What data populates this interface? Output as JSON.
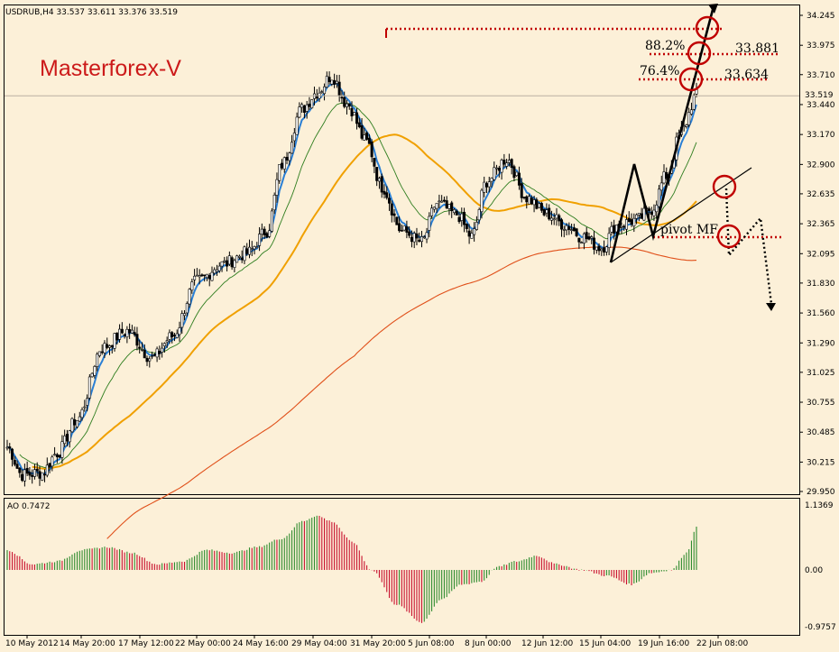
{
  "header": {
    "symbol_info": "USDRUB,H4  33.537 33.611 33.376 33.519",
    "brand": "Masterforex-V"
  },
  "annotations": {
    "fib_upper_pct": "88.2%",
    "fib_upper_val": "33.881",
    "fib_lower_pct": "76.4%",
    "fib_lower_val": "33.634",
    "pivot_label": "pivot MF",
    "current_price": "33.519"
  },
  "oscillator": {
    "label": "AO 0.7472",
    "ticks": [
      "1.1369",
      "0.00",
      "-0.9757"
    ]
  },
  "colors": {
    "background": "#fcf0d8",
    "candle": "#000000",
    "fast_ma": "#2a7fd5",
    "mid_ma": "#2e7d1e",
    "slow_ma": "#f0a000",
    "long_ma": "#e0501a",
    "ao_up": "#2e8b2e",
    "ao_down": "#c8102e",
    "marker": "#c00000",
    "brand": "#cc1a1a"
  },
  "chart_data": {
    "type": "candlestick",
    "symbol": "USDRUB",
    "timeframe": "H4",
    "price_axis": {
      "ticks": [
        "34.245",
        "33.975",
        "33.710",
        "33.440",
        "33.170",
        "32.900",
        "32.635",
        "32.365",
        "32.095",
        "31.830",
        "31.560",
        "31.290",
        "31.025",
        "30.755",
        "30.485",
        "30.215",
        "29.950"
      ],
      "ylim": [
        29.95,
        34.245
      ]
    },
    "time_labels": [
      "10 May 2012",
      "14 May 20:00",
      "17 May 12:00",
      "22 May 00:00",
      "24 May 16:00",
      "29 May 04:00",
      "31 May 20:00",
      "5 Jun 08:00",
      "8 Jun 00:00",
      "12 Jun 12:00",
      "15 Jun 04:00",
      "19 Jun 16:00",
      "22 Jun 08:00"
    ],
    "close_waypoints": [
      [
        0,
        30.35
      ],
      [
        6,
        30.1
      ],
      [
        14,
        30.12
      ],
      [
        20,
        30.3
      ],
      [
        28,
        30.6
      ],
      [
        38,
        31.25
      ],
      [
        48,
        31.4
      ],
      [
        58,
        31.15
      ],
      [
        66,
        31.35
      ],
      [
        76,
        31.85
      ],
      [
        86,
        32.0
      ],
      [
        96,
        32.1
      ],
      [
        104,
        32.3
      ],
      [
        110,
        32.9
      ],
      [
        118,
        33.4
      ],
      [
        124,
        33.55
      ],
      [
        130,
        33.7
      ],
      [
        136,
        33.45
      ],
      [
        144,
        33.1
      ],
      [
        150,
        32.7
      ],
      [
        158,
        32.3
      ],
      [
        166,
        32.2
      ],
      [
        172,
        32.55
      ],
      [
        180,
        32.45
      ],
      [
        186,
        32.25
      ],
      [
        192,
        32.75
      ],
      [
        200,
        32.95
      ],
      [
        208,
        32.6
      ],
      [
        216,
        32.45
      ],
      [
        224,
        32.35
      ],
      [
        230,
        32.25
      ],
      [
        238,
        32.15
      ],
      [
        244,
        32.35
      ],
      [
        252,
        32.4
      ],
      [
        258,
        32.5
      ],
      [
        264,
        32.8
      ],
      [
        270,
        33.2
      ],
      [
        276,
        33.52
      ]
    ],
    "ao_waypoints": [
      [
        0,
        0.35
      ],
      [
        10,
        0.1
      ],
      [
        20,
        0.15
      ],
      [
        30,
        0.35
      ],
      [
        40,
        0.4
      ],
      [
        50,
        0.3
      ],
      [
        60,
        0.1
      ],
      [
        70,
        0.15
      ],
      [
        80,
        0.35
      ],
      [
        90,
        0.3
      ],
      [
        100,
        0.4
      ],
      [
        110,
        0.55
      ],
      [
        118,
        0.85
      ],
      [
        124,
        0.95
      ],
      [
        130,
        0.85
      ],
      [
        138,
        0.5
      ],
      [
        146,
        0.0
      ],
      [
        156,
        -0.6
      ],
      [
        166,
        -0.9
      ],
      [
        174,
        -0.5
      ],
      [
        182,
        -0.25
      ],
      [
        190,
        -0.2
      ],
      [
        196,
        0.05
      ],
      [
        204,
        0.15
      ],
      [
        212,
        0.25
      ],
      [
        220,
        0.1
      ],
      [
        230,
        0.0
      ],
      [
        240,
        -0.1
      ],
      [
        250,
        -0.25
      ],
      [
        258,
        -0.05
      ],
      [
        266,
        0.0
      ],
      [
        272,
        0.3
      ],
      [
        276,
        0.75
      ]
    ],
    "ao_range": [
      -0.9757,
      1.1369
    ],
    "levels": {
      "fib_88_2": 33.881,
      "fib_76_4": 33.634,
      "current": 33.519
    }
  }
}
